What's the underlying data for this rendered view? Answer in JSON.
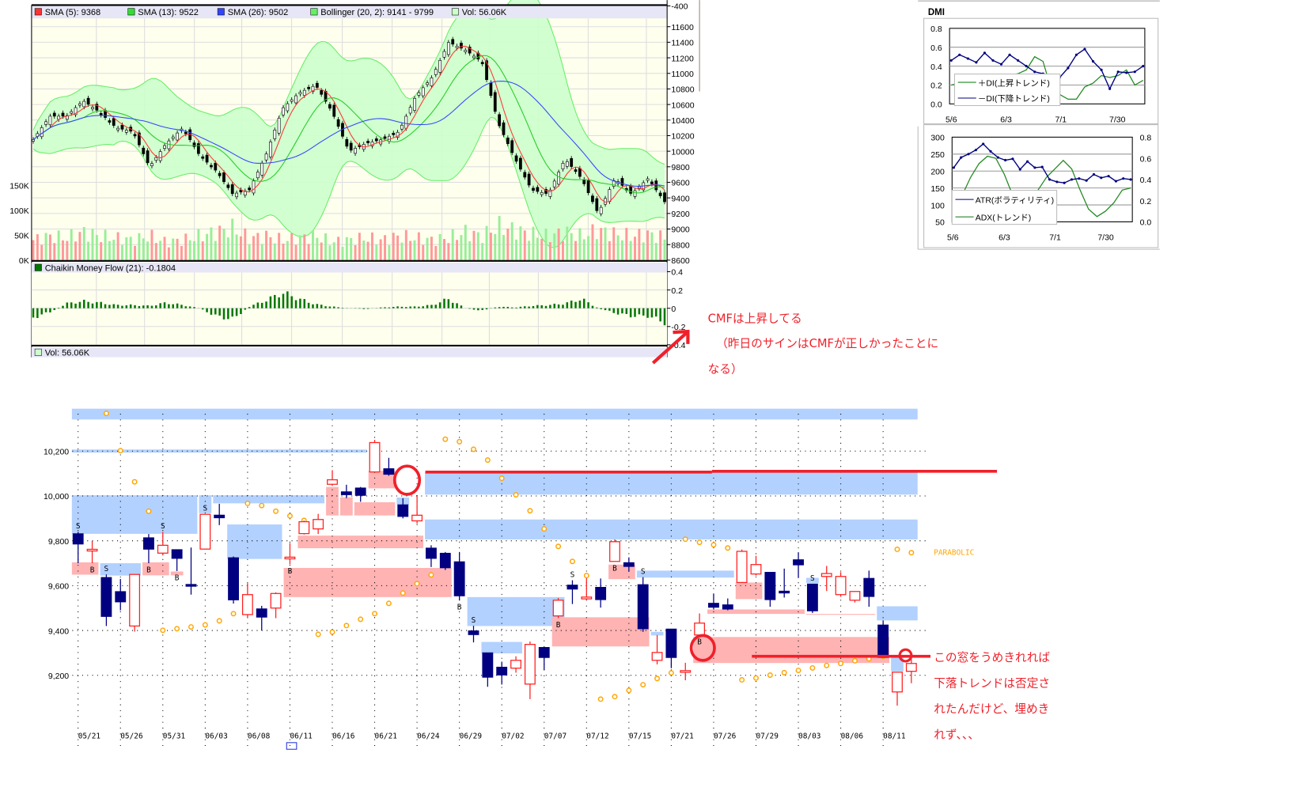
{
  "colors": {
    "up": "#ff2020",
    "down": "#000080",
    "gap_up": "#ffb3b3",
    "gap_down": "#b3d1ff",
    "sar": "#ffa500",
    "annotation": "#f0202a",
    "plot_bg": "#ffffee",
    "legend_bg": "#e6e6f6",
    "sma5": "#ff3333",
    "sma13": "#22cc22",
    "sma26": "#3344ff",
    "boll": "#66ee66",
    "boll_fill": "#ccffcc",
    "cmf": "#007700",
    "vol_up": "#ff9999",
    "vol_down": "#99ee99"
  },
  "top_chart": {
    "legend": [
      {
        "label": "SMA (5): 9368",
        "color": "#ff3333"
      },
      {
        "label": "SMA (13): 9522",
        "color": "#33dd33"
      },
      {
        "label": "SMA (26): 9502",
        "color": "#3344ff"
      },
      {
        "label": "Bollinger (20, 2): 9141 - 9799",
        "color": "#66ee66"
      },
      {
        "label": "Vol: 56.06K",
        "color": "#ccffcc"
      }
    ],
    "price_ticks": [
      "-400",
      "11600",
      "11400",
      "11200",
      "11000",
      "10800",
      "10600",
      "10400",
      "10200",
      "10000",
      "9800",
      "9600",
      "9400",
      "9200",
      "9000",
      "8800",
      "8600"
    ],
    "volume_ticks": [
      "150K",
      "100K",
      "50K",
      "0K"
    ],
    "cmf_legend": "Chaikin Money Flow (21): -0.1804",
    "cmf_ticks": [
      "0.4",
      "0.2",
      "0",
      "-0.2",
      "-0.4"
    ],
    "vol_legend": "Vol: 56.06K"
  },
  "dmi": {
    "title": "DMI",
    "upper_ticks": [
      "0.8",
      "0.6",
      "0.4",
      "0.2",
      "0.0"
    ],
    "lower_left_ticks": [
      "300",
      "250",
      "200",
      "150",
      "100",
      "50"
    ],
    "lower_right_ticks": [
      "0.8",
      "0.6",
      "0.4",
      "0.2",
      "0.0"
    ],
    "dates": [
      "5/6",
      "6/3",
      "7/1",
      "7/30"
    ],
    "legend_plus": "＋DI(上昇トレンド)",
    "legend_minus": "－DI(下降トレンド)",
    "legend_atr": "ATR(ボラティリティ)",
    "legend_adx": "ADX(トレンド)"
  },
  "bottom_chart": {
    "y_ticks": [
      "10,200",
      "10,000",
      "9,800",
      "9,600",
      "9,400",
      "9,200"
    ],
    "dates": [
      "05/21",
      "05/26",
      "05/31",
      "06/03",
      "06/08",
      "06/11",
      "06/16",
      "06/21",
      "06/24",
      "06/29",
      "07/02",
      "07/07",
      "07/12",
      "07/15",
      "07/21",
      "07/26",
      "07/29",
      "08/03",
      "08/06",
      "08/11"
    ],
    "parabolic_label": "PARABOLIC"
  },
  "annotations": {
    "cmf_note": [
      "CMFは上昇してる",
      "（昨日のサインはCMFが正しかったことに",
      "なる）"
    ],
    "gap_note": [
      "この窓をうめきれれば",
      "下落トレンドは否定さ",
      "れたんだけど、埋めき",
      "れず、、、"
    ]
  },
  "chart_data": [
    {
      "type": "candlestick",
      "name_hint": "price",
      "close_approx": [
        10150,
        10450,
        10450,
        10650,
        10500,
        10300,
        10250,
        9800,
        10100,
        10300,
        9950,
        9750,
        9450,
        9500,
        9950,
        10550,
        10750,
        10850,
        10500,
        10000,
        10100,
        10150,
        10250,
        10700,
        10950,
        11400,
        11300,
        11150,
        10350,
        9900,
        9500,
        9450,
        9900,
        9650,
        9200,
        9650,
        9450,
        9650,
        9350
      ],
      "volume_k": [
        50,
        60,
        55,
        70,
        60,
        55,
        50,
        60,
        45,
        50,
        60,
        70,
        80,
        55,
        60,
        50,
        55,
        60,
        45,
        50,
        55,
        50,
        60,
        55,
        50,
        55,
        70,
        60,
        85,
        75,
        65,
        60,
        70,
        60,
        75,
        65,
        60,
        65,
        56
      ],
      "ylim": [
        8600,
        11700
      ],
      "volume_ylim": [
        0,
        150
      ]
    },
    {
      "type": "bar",
      "name_hint": "cmf",
      "values": [
        -0.12,
        -0.05,
        0.06,
        0.09,
        0.07,
        0.04,
        0.04,
        0.03,
        0.07,
        0.04,
        0.0,
        -0.1,
        -0.14,
        0.02,
        0.1,
        0.2,
        0.12,
        0.05,
        0.02,
        0.0,
        -0.01,
        0.01,
        0.02,
        0.02,
        0.04,
        0.12,
        0.0,
        -0.03,
        0.02,
        0.01,
        0.03,
        0.04,
        0.06,
        0.12,
        0.0,
        -0.06,
        -0.1,
        -0.1,
        -0.18
      ],
      "ylim": [
        -0.4,
        0.4
      ]
    },
    {
      "type": "line",
      "name_hint": "dmi",
      "series": [
        {
          "name": "－DI(下降トレンド)",
          "values": [
            0.46,
            0.52,
            0.48,
            0.44,
            0.54,
            0.46,
            0.42,
            0.52,
            0.46,
            0.4,
            0.34,
            0.32,
            0.3,
            0.28,
            0.38,
            0.52,
            0.58,
            0.45,
            0.36,
            0.16,
            0.34,
            0.33,
            0.34,
            0.4
          ]
        },
        {
          "name": "＋DI(上昇トレンド)",
          "values": [
            0.2,
            0.22,
            0.25,
            0.22,
            0.2,
            0.22,
            0.25,
            0.3,
            0.32,
            0.36,
            0.5,
            0.45,
            0.15,
            0.1,
            0.05,
            0.05,
            0.18,
            0.22,
            0.3,
            0.28,
            0.3,
            0.36,
            0.2,
            0.25
          ]
        }
      ],
      "ylim": [
        0,
        0.8
      ]
    },
    {
      "type": "line",
      "name_hint": "atr-adx",
      "series": [
        {
          "name": "ATR(ボラティリティ)",
          "values": [
            210,
            240,
            250,
            262,
            280,
            258,
            240,
            232,
            236,
            205,
            228,
            210,
            212,
            175,
            168,
            165,
            175,
            178,
            172,
            190,
            180,
            185,
            170,
            178,
            175
          ],
          "axis": "left"
        },
        {
          "name": "ADX(トレンド)",
          "values": [
            0.15,
            0.25,
            0.42,
            0.55,
            0.62,
            0.6,
            0.45,
            0.25,
            0.12,
            0.15,
            0.3,
            0.42,
            0.5,
            0.58,
            0.5,
            0.3,
            0.12,
            0.05,
            0.1,
            0.18,
            0.3,
            0.32
          ],
          "axis": "right"
        }
      ],
      "ylim_left": [
        50,
        300
      ],
      "ylim_right": [
        0,
        0.8
      ]
    },
    {
      "type": "candlestick",
      "name_hint": "daily-gap-chart",
      "ohlc": [
        [
          9831,
          9840,
          9700,
          9786
        ],
        [
          9760,
          9800,
          9700,
          9762
        ],
        [
          9636,
          9650,
          9420,
          9463
        ],
        [
          9573,
          9630,
          9490,
          9528
        ],
        [
          9420,
          9650,
          9395,
          9650
        ],
        [
          9813,
          9830,
          9700,
          9763
        ],
        [
          9745,
          9840,
          9735,
          9780
        ],
        [
          9760,
          9760,
          9665,
          9722
        ],
        [
          9605,
          9770,
          9560,
          9603
        ],
        [
          9763,
          9920,
          9763,
          9918
        ],
        [
          9914,
          9965,
          9870,
          9903
        ],
        [
          9724,
          9730,
          9520,
          9537
        ],
        [
          9471,
          9610,
          9455,
          9560
        ],
        [
          9496,
          9510,
          9400,
          9460
        ],
        [
          9500,
          9570,
          9455,
          9565
        ],
        [
          9725,
          9790,
          9695,
          9727
        ],
        [
          9832,
          9890,
          9828,
          9885
        ],
        [
          9853,
          9920,
          9830,
          9895
        ],
        [
          10052,
          10115,
          10045,
          10072
        ],
        [
          10018,
          10050,
          9990,
          10006
        ],
        [
          10035,
          10040,
          9974,
          10003
        ],
        [
          10107,
          10250,
          10107,
          10238
        ],
        [
          10121,
          10170,
          10090,
          10097
        ],
        [
          9960,
          9990,
          9900,
          9909
        ],
        [
          9889,
          10000,
          9877,
          9914
        ],
        [
          9767,
          9780,
          9683,
          9722
        ],
        [
          9744,
          9750,
          9670,
          9680
        ],
        [
          9706,
          9750,
          9535,
          9555
        ],
        [
          9398,
          9421,
          9347,
          9382
        ],
        [
          9300,
          9300,
          9149,
          9192
        ],
        [
          9236,
          9261,
          9159,
          9202
        ],
        [
          9232,
          9285,
          9212,
          9267
        ],
        [
          9161,
          9351,
          9094,
          9338
        ],
        [
          9324,
          9324,
          9224,
          9280
        ],
        [
          9465,
          9545,
          9455,
          9535
        ],
        [
          9602,
          9624,
          9518,
          9585
        ],
        [
          9541,
          9633,
          9535,
          9549
        ],
        [
          9592,
          9632,
          9502,
          9538
        ],
        [
          9708,
          9806,
          9708,
          9796
        ],
        [
          9702,
          9726,
          9662,
          9686
        ],
        [
          9604,
          9638,
          9394,
          9408
        ],
        [
          9267,
          9380,
          9249,
          9302
        ],
        [
          9406,
          9406,
          9232,
          9280
        ],
        [
          9219,
          9256,
          9178,
          9221
        ],
        [
          9380,
          9476,
          9380,
          9433
        ],
        [
          9521,
          9565,
          9494,
          9504
        ],
        [
          9514,
          9543,
          9490,
          9496
        ],
        [
          9614,
          9761,
          9614,
          9753
        ],
        [
          9652,
          9733,
          9645,
          9694
        ],
        [
          9659,
          9659,
          9506,
          9538
        ],
        [
          9575,
          9676,
          9547,
          9573
        ],
        [
          9715,
          9749,
          9634,
          9693
        ],
        [
          9607,
          9607,
          9478,
          9488
        ],
        [
          9641,
          9688,
          9576,
          9654
        ],
        [
          9560,
          9660,
          9550,
          9641
        ],
        [
          9535,
          9574,
          9525,
          9574
        ],
        [
          9632,
          9667,
          9506,
          9552
        ],
        [
          9424,
          9445,
          9280,
          9280
        ],
        [
          9126,
          9214,
          9065,
          9214
        ],
        [
          9218,
          9276,
          9165,
          9253
        ]
      ],
      "parabolic_sar": [
        null,
        null,
        10368,
        10202,
        10063,
        9932,
        9401,
        9408,
        9416,
        9425,
        9443,
        9475,
        9967,
        9957,
        9932,
        9911,
        9891,
        9383,
        9393,
        9422,
        9450,
        9475,
        9521,
        9567,
        9609,
        9648,
        10253,
        10242,
        10208,
        10160,
        10079,
        10005,
        9934,
        9853,
        9775,
        9708,
        9645,
        9094,
        9105,
        9133,
        9158,
        9186,
        9211,
        9807,
        9793,
        9782,
        9768,
        9180,
        9188,
        9201,
        9212,
        9222,
        9233,
        9244,
        9253,
        9265,
        9274,
        9285,
        9762,
        9747
      ],
      "signals": [
        [
          1,
          "S"
        ],
        [
          2,
          "B"
        ],
        [
          3,
          "S"
        ],
        [
          6,
          "B"
        ],
        [
          7,
          "S"
        ],
        [
          8,
          "B"
        ],
        [
          10,
          "S"
        ],
        [
          16,
          "B"
        ],
        [
          28,
          "B"
        ],
        [
          29,
          "S"
        ],
        [
          35,
          "B"
        ],
        [
          36,
          "S"
        ],
        [
          39,
          "B"
        ],
        [
          41,
          "S"
        ],
        [
          45,
          "B"
        ],
        [
          53,
          "S"
        ]
      ],
      "gap_down_zones": [
        [
          1,
          60,
          10341,
          10389
        ],
        [
          1,
          21,
          10193,
          10207
        ],
        [
          1,
          9,
          9831,
          10003
        ],
        [
          10,
          10,
          9923,
          10003
        ],
        [
          11,
          18,
          9967,
          10003
        ],
        [
          3,
          5,
          9645,
          9700
        ],
        [
          12,
          15,
          9719,
          9873
        ],
        [
          24,
          24,
          9960,
          9993
        ],
        [
          26,
          60,
          10006,
          10106
        ],
        [
          26,
          60,
          9806,
          9895
        ],
        [
          29,
          35,
          9420,
          9549
        ],
        [
          30,
          32,
          9298,
          9349
        ],
        [
          42,
          42,
          9378,
          9394
        ],
        [
          41,
          47,
          9636,
          9667
        ],
        [
          53,
          53,
          9612,
          9635
        ],
        [
          58,
          60,
          9445,
          9508
        ],
        [
          59,
          59,
          9218,
          9280
        ]
      ],
      "gap_up_zones": [
        [
          1,
          2,
          9649,
          9704
        ],
        [
          6,
          7,
          9646,
          9704
        ],
        [
          8,
          8,
          9646,
          9663
        ],
        [
          16,
          27,
          9549,
          9679
        ],
        [
          17,
          25,
          9767,
          9823
        ],
        [
          19,
          19,
          9913,
          10040
        ],
        [
          20,
          20,
          9913,
          9994
        ],
        [
          21,
          23,
          9913,
          9972
        ],
        [
          22,
          23,
          10034,
          10112
        ],
        [
          35,
          41,
          9329,
          9459
        ],
        [
          39,
          40,
          9629,
          9694
        ],
        [
          45,
          58,
          9255,
          9371
        ],
        [
          48,
          49,
          9540,
          9614
        ],
        [
          46,
          52,
          9474,
          9494
        ],
        [
          53,
          57,
          9470,
          9474
        ]
      ],
      "resistance_levels": [
        10110,
        9285
      ],
      "ylim": [
        9050,
        10400
      ]
    }
  ]
}
